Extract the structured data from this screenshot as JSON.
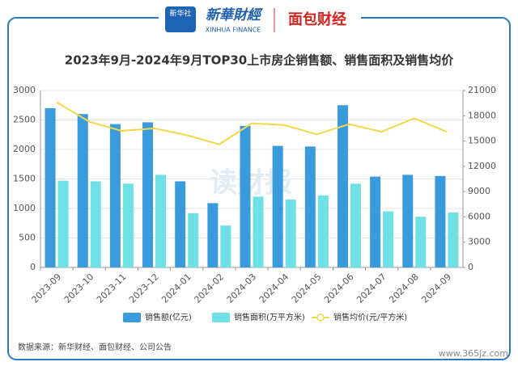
{
  "header": {
    "logo_badge": "新华社",
    "logo_cn": "新華財經",
    "logo_en": "XINHUA FINANCE",
    "brand2": "面包财经"
  },
  "chart_data": {
    "type": "bar",
    "title": "2023年9月-2024年9月TOP30上市房企销售额、销售面积及销售均价",
    "categories": [
      "2023-09",
      "2023-10",
      "2023-11",
      "2023-12",
      "2024-01",
      "2024-02",
      "2024-03",
      "2024-04",
      "2024-05",
      "2024-06",
      "2024-07",
      "2024-08",
      "2024-09"
    ],
    "series": [
      {
        "name": "销售额(亿元)",
        "color": "#3a9bdc",
        "type": "bar",
        "values": [
          2700,
          2600,
          2430,
          2460,
          1460,
          1090,
          2400,
          2060,
          2050,
          2750,
          1540,
          1570,
          1550
        ]
      },
      {
        "name": "销售面积(万平方米)",
        "color": "#6fe0e6",
        "type": "bar",
        "values": [
          1470,
          1460,
          1420,
          1570,
          920,
          710,
          1200,
          1150,
          1220,
          1420,
          950,
          860,
          930
        ]
      },
      {
        "name": "销售均价(元/平方米)",
        "color": "#f5d84a",
        "type": "line",
        "axis": "y2",
        "values": [
          19600,
          17300,
          16200,
          16500,
          15700,
          14600,
          17100,
          16900,
          15800,
          17000,
          16100,
          17700,
          16100
        ]
      }
    ],
    "ylim": [
      0,
      3000
    ],
    "yticks": [
      0,
      500,
      1000,
      1500,
      2000,
      2500,
      3000
    ],
    "y2lim": [
      0,
      21000
    ],
    "y2ticks": [
      0,
      3000,
      6000,
      9000,
      12000,
      15000,
      18000,
      21000
    ],
    "legend": "bottom",
    "source": "数据来源：新华财经、面包财经、公司公告",
    "watermark": "读财报",
    "site": "www.365jz.com"
  }
}
